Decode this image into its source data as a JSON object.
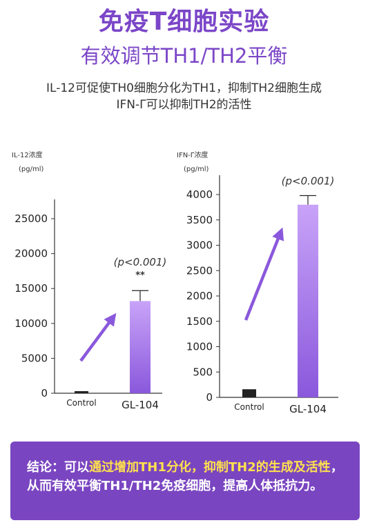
{
  "header": {
    "title": "免疫T细胞实验",
    "subtitle": "有效调节TH1/TH2平衡",
    "desc_line1": "IL-12可促使TH0细胞分化为TH1，抑制TH2细胞生成",
    "desc_line2": "IFN-Γ可以抑制TH2的活性"
  },
  "colors": {
    "accent": "#7b46c8",
    "bar_top": "#c8a3f8",
    "bar_bottom": "#8a58dc",
    "control_bar": "#222222",
    "arrow": "#8a58dc",
    "highlight": "#ffe14d",
    "panel": "#7a45c1"
  },
  "chart_data": [
    {
      "type": "bar",
      "ylabel_line1": "IL-12浓度",
      "ylabel_line2": "(pg/ml)",
      "categories": [
        "Control",
        "GL-104"
      ],
      "values": [
        300,
        13200
      ],
      "error": [
        0,
        1500
      ],
      "ylim": [
        0,
        25000
      ],
      "yticks": [
        "0",
        "5000",
        "10000",
        "15000",
        "20000",
        "25000"
      ],
      "annotation": "(p<0.001)",
      "significance": "**",
      "legend": "none",
      "grid": false
    },
    {
      "type": "bar",
      "ylabel_line1": "IFN-Γ浓度",
      "ylabel_line2": "(pg/ml)",
      "categories": [
        "Control",
        "GL-104"
      ],
      "values": [
        160,
        3800
      ],
      "error": [
        0,
        180
      ],
      "ylim": [
        0,
        4000
      ],
      "yticks": [
        "0",
        "500",
        "1000",
        "1500",
        "2000",
        "2500",
        "3000",
        "3500",
        "4000"
      ],
      "annotation": "(p<0.001)",
      "legend": "none",
      "grid": false
    }
  ],
  "conclusion": {
    "prefix": "结论：可以",
    "highlight": "通过增加TH1分化，抑制TH2的生成及活性",
    "suffix": "，从而有效平衡TH1/TH2免疫细胞，提高人体抵抗力。"
  }
}
